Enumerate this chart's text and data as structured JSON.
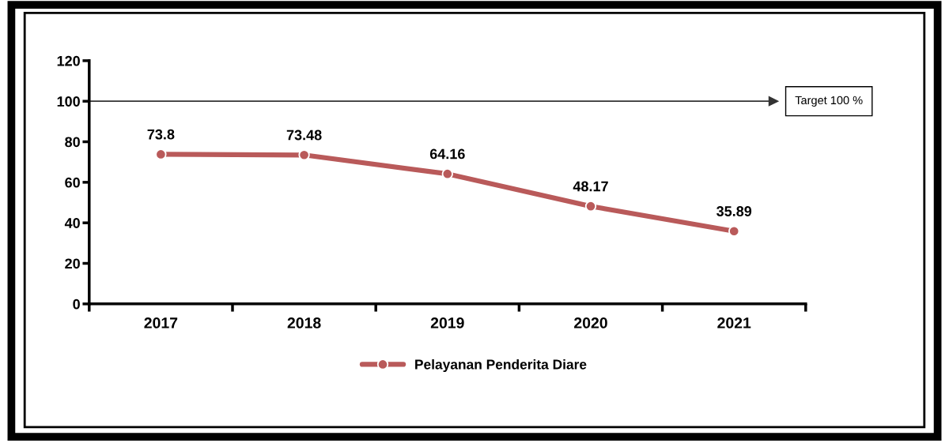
{
  "chart_data": {
    "type": "line",
    "categories": [
      "2017",
      "2018",
      "2019",
      "2020",
      "2021"
    ],
    "series": [
      {
        "name": "Pelayanan Penderita Diare",
        "color": "#b95a5a",
        "values": [
          73.8,
          73.48,
          64.16,
          48.17,
          35.89
        ]
      }
    ],
    "ylim": [
      0,
      120
    ],
    "yticks": [
      0,
      20,
      40,
      60,
      80,
      100,
      120
    ],
    "ref_lines": [
      {
        "axis": "y",
        "value": 100,
        "label": "Target 100 %",
        "color": "#333333"
      }
    ],
    "data_labels": true,
    "marker": "circle",
    "line_style": "solid",
    "grid": false,
    "legend": "bottom"
  }
}
